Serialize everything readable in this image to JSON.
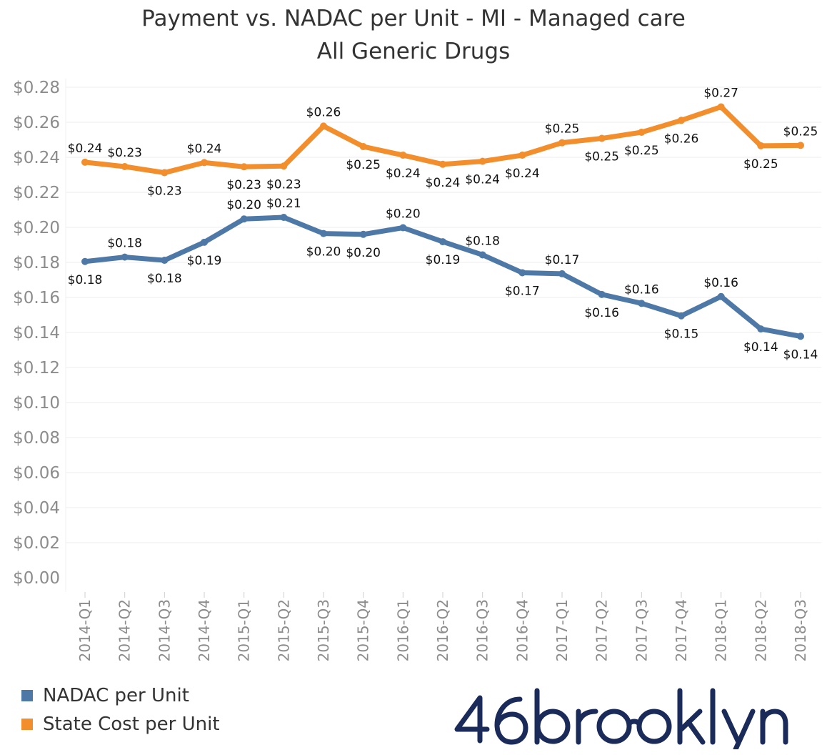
{
  "chart_data": {
    "type": "line",
    "title": "Payment vs. NADAC per Unit - MI - Managed care",
    "subtitle": "All Generic Drugs",
    "xlabel": "",
    "ylabel": "",
    "ylim": [
      0,
      0.28
    ],
    "yticks": [
      "$0.00",
      "$0.02",
      "$0.04",
      "$0.06",
      "$0.08",
      "$0.10",
      "$0.12",
      "$0.14",
      "$0.16",
      "$0.18",
      "$0.20",
      "$0.22",
      "$0.24",
      "$0.26",
      "$0.28"
    ],
    "grid": true,
    "legend_position": "bottom-left",
    "categories": [
      "2014-Q1",
      "2014-Q2",
      "2014-Q3",
      "2014-Q4",
      "2015-Q1",
      "2015-Q2",
      "2015-Q3",
      "2015-Q4",
      "2016-Q1",
      "2016-Q2",
      "2016-Q3",
      "2016-Q4",
      "2017-Q1",
      "2017-Q2",
      "2017-Q3",
      "2017-Q4",
      "2018-Q1",
      "2018-Q2",
      "2018-Q3"
    ],
    "series": [
      {
        "name": "NADAC per Unit",
        "color": "#4e79a7",
        "values": [
          0.1805,
          0.183,
          0.1812,
          0.1915,
          0.2048,
          0.2057,
          0.1965,
          0.196,
          0.1998,
          0.1918,
          0.1843,
          0.1741,
          0.1735,
          0.1617,
          0.1566,
          0.1495,
          0.1605,
          0.142,
          0.1378
        ],
        "labels": [
          "$0.18",
          "$0.18",
          "$0.18",
          "$0.19",
          "$0.20",
          "$0.21",
          "$0.20",
          "$0.20",
          "$0.20",
          "$0.19",
          "$0.18",
          "$0.17",
          "$0.17",
          "$0.16",
          "$0.16",
          "$0.15",
          "$0.16",
          "$0.14",
          "$0.14"
        ]
      },
      {
        "name": "State Cost per Unit",
        "color": "#f28e2b",
        "values": [
          0.2372,
          0.2347,
          0.2312,
          0.237,
          0.2346,
          0.235,
          0.2578,
          0.2461,
          0.2412,
          0.236,
          0.2377,
          0.2412,
          0.2483,
          0.2508,
          0.2543,
          0.2611,
          0.2688,
          0.2466,
          0.2468
        ],
        "labels": [
          "$0.24",
          "$0.23",
          "$0.23",
          "$0.24",
          "$0.23",
          "$0.23",
          "$0.26",
          "$0.25",
          "$0.24",
          "$0.24",
          "$0.24",
          "$0.24",
          "$0.25",
          "$0.25",
          "$0.25",
          "$0.26",
          "$0.27",
          "$0.25",
          "$0.25"
        ]
      }
    ]
  },
  "logo": {
    "text": "46brooklyn",
    "color": "#1a2b5a"
  }
}
